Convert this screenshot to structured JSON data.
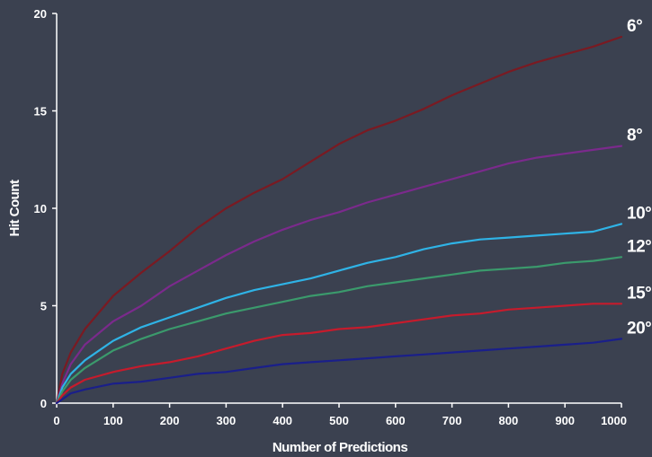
{
  "chart_data": {
    "type": "line",
    "title": "",
    "xlabel": "Number of Predictions",
    "ylabel": "Hit Count",
    "xlim": [
      0,
      1000
    ],
    "ylim": [
      0,
      20
    ],
    "x_ticks": [
      0,
      100,
      200,
      300,
      400,
      500,
      600,
      700,
      800,
      900,
      1000
    ],
    "y_ticks": [
      0,
      5,
      10,
      15,
      20
    ],
    "x_tick_labels": [
      "0",
      "100",
      "200",
      "300",
      "400",
      "500",
      "600",
      "700",
      "800",
      "900",
      "1000"
    ],
    "y_tick_labels": [
      "0",
      "5",
      "10",
      "15",
      "20"
    ],
    "grid": false,
    "legend": "direct labels at line ends (right)",
    "x": [
      0,
      10,
      25,
      50,
      100,
      150,
      200,
      250,
      300,
      350,
      400,
      450,
      500,
      550,
      600,
      650,
      700,
      750,
      800,
      850,
      900,
      950,
      1000
    ],
    "series": [
      {
        "name": "6°",
        "color": "#7a1a22",
        "values": [
          0,
          1.5,
          2.6,
          3.8,
          5.5,
          6.7,
          7.8,
          9.0,
          10.0,
          10.8,
          11.5,
          12.4,
          13.3,
          14.0,
          14.5,
          15.1,
          15.8,
          16.4,
          17.0,
          17.5,
          17.9,
          18.3,
          18.8
        ]
      },
      {
        "name": "8°",
        "color": "#7b2a8c",
        "values": [
          0,
          1.0,
          2.0,
          3.0,
          4.2,
          5.0,
          6.0,
          6.8,
          7.6,
          8.3,
          8.9,
          9.4,
          9.8,
          10.3,
          10.7,
          11.1,
          11.5,
          11.9,
          12.3,
          12.6,
          12.8,
          13.0,
          13.2
        ]
      },
      {
        "name": "10°",
        "color": "#2fb3e6",
        "values": [
          0,
          0.8,
          1.5,
          2.2,
          3.2,
          3.9,
          4.4,
          4.9,
          5.4,
          5.8,
          6.1,
          6.4,
          6.8,
          7.2,
          7.5,
          7.9,
          8.2,
          8.4,
          8.5,
          8.6,
          8.7,
          8.8,
          9.2
        ]
      },
      {
        "name": "12°",
        "color": "#3b9a6c",
        "values": [
          0,
          0.6,
          1.2,
          1.8,
          2.7,
          3.3,
          3.8,
          4.2,
          4.6,
          4.9,
          5.2,
          5.5,
          5.7,
          6.0,
          6.2,
          6.4,
          6.6,
          6.8,
          6.9,
          7.0,
          7.2,
          7.3,
          7.5
        ]
      },
      {
        "name": "15°",
        "color": "#c61b2c",
        "values": [
          0,
          0.4,
          0.8,
          1.2,
          1.6,
          1.9,
          2.1,
          2.4,
          2.8,
          3.2,
          3.5,
          3.6,
          3.8,
          3.9,
          4.1,
          4.3,
          4.5,
          4.6,
          4.8,
          4.9,
          5.0,
          5.1,
          5.1
        ]
      },
      {
        "name": "20°",
        "color": "#1a1f8a",
        "values": [
          0,
          0.2,
          0.5,
          0.7,
          1.0,
          1.1,
          1.3,
          1.5,
          1.6,
          1.8,
          2.0,
          2.1,
          2.2,
          2.3,
          2.4,
          2.5,
          2.6,
          2.7,
          2.8,
          2.9,
          3.0,
          3.1,
          3.3
        ]
      }
    ]
  }
}
